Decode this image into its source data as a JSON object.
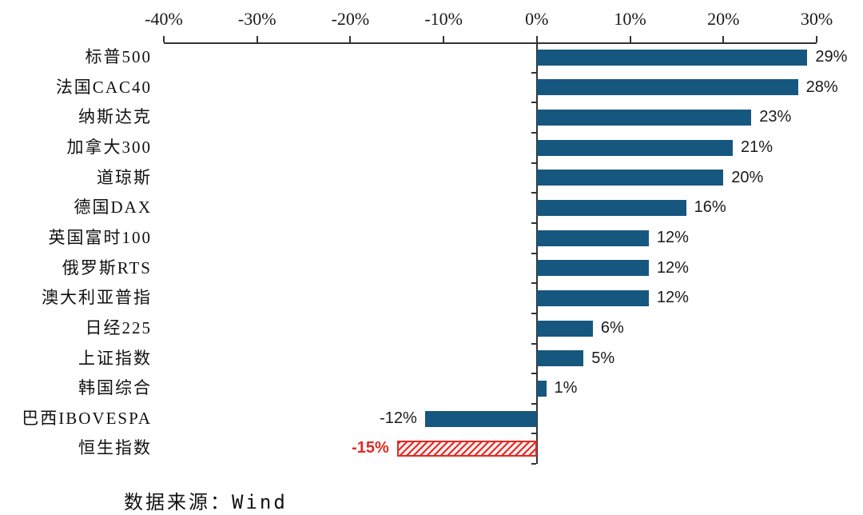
{
  "chart_data": {
    "type": "bar",
    "orientation": "horizontal",
    "title": "",
    "categories": [
      "标普500",
      "法国CAC40",
      "纳斯达克",
      "加拿大300",
      "道琼斯",
      "德国DAX",
      "英国富时100",
      "俄罗斯RTS",
      "澳大利亚普指",
      "日经225",
      "上证指数",
      "韩国综合",
      "巴西IBOVESPA",
      "恒生指数"
    ],
    "values": [
      29,
      28,
      23,
      21,
      20,
      16,
      12,
      12,
      12,
      6,
      5,
      1,
      -12,
      -15
    ],
    "value_labels": [
      "29%",
      "28%",
      "23%",
      "21%",
      "20%",
      "16%",
      "12%",
      "12%",
      "12%",
      "6%",
      "5%",
      "1%",
      "-12%",
      "-15%"
    ],
    "xlim": [
      -40,
      30
    ],
    "x_tick_values": [
      -40,
      -30,
      -20,
      -10,
      0,
      10,
      20,
      30
    ],
    "x_tick_labels": [
      "-40%",
      "-30%",
      "-20%",
      "-10%",
      "0%",
      "10%",
      "20%",
      "30%"
    ],
    "axis_position": "top",
    "grid": false,
    "legend": false,
    "bar_color": "#16577f",
    "highlight": {
      "index": 13,
      "category": "恒生指数",
      "style": "hatched",
      "color": "#e02b24",
      "hatch_background": "#fdeeee"
    }
  },
  "footer": {
    "source_label": "数据来源：Wind"
  }
}
